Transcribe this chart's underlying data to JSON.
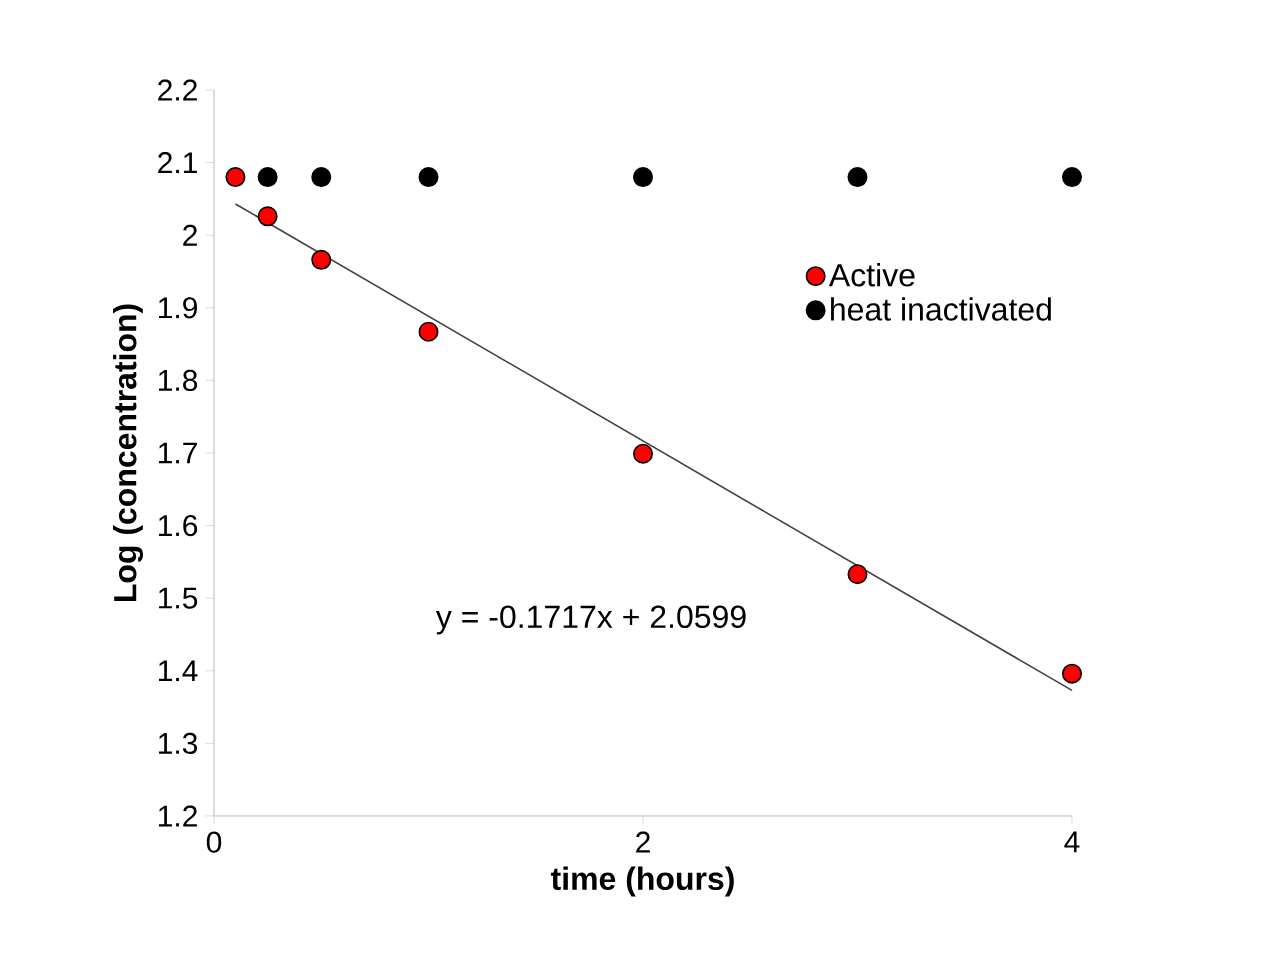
{
  "chart_data": {
    "type": "scatter",
    "xlabel": "time (hours)",
    "ylabel": "Log (concentration)",
    "xlim": [
      0,
      4
    ],
    "xticks": [
      0,
      2,
      4
    ],
    "ylim": [
      1.2,
      2.2
    ],
    "yticks": [
      1.2,
      1.3,
      1.4,
      1.5,
      1.6,
      1.7,
      1.8,
      1.9,
      2,
      2.1,
      2.2
    ],
    "series": [
      {
        "name": "Active",
        "marker": "circle",
        "color": "#ff0000",
        "x": [
          0.1,
          0.25,
          0.5,
          1,
          2,
          3,
          4
        ],
        "values": [
          2.08,
          2.026,
          1.966,
          1.867,
          1.699,
          1.533,
          1.396
        ]
      },
      {
        "name": "heat inactivated",
        "marker": "circle",
        "color": "#000000",
        "x": [
          0.25,
          0.5,
          1,
          2,
          3,
          4
        ],
        "values": [
          2.08,
          2.08,
          2.08,
          2.08,
          2.08,
          2.08
        ]
      },
      {
        "type": "line",
        "marker": "none",
        "color": "#404040",
        "x": [
          0.1,
          4
        ],
        "values": [
          2.043,
          1.373
        ]
      }
    ],
    "annotations": [
      "y = -0.1717x + 2.0599"
    ],
    "legend": "right",
    "grid": false
  }
}
